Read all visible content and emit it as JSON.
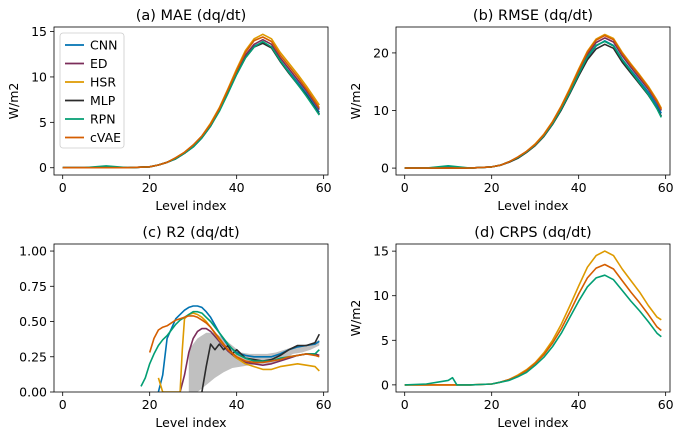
{
  "figure": {
    "legend_title": ""
  },
  "colors": {
    "CNN": "#0173b2",
    "ED": "#7b2d5a",
    "HSR": "#de9a00",
    "MLP": "#2b2b2b",
    "RPN": "#029e73",
    "cVAE": "#d55e00",
    "band": "#c0c0c0"
  },
  "chart_data": [
    {
      "type": "line",
      "title": "(a) MAE (dq/dt)",
      "xlabel": "Level index",
      "ylabel": "W/m2",
      "xlim": [
        -2,
        61
      ],
      "ylim": [
        -0.8,
        15.5
      ],
      "xticks": [
        0,
        20,
        40,
        60
      ],
      "yticks": [
        0,
        5,
        10,
        15
      ],
      "legend": "top-left",
      "grid": false,
      "x": [
        0,
        5,
        10,
        15,
        20,
        22,
        24,
        26,
        28,
        30,
        32,
        34,
        36,
        38,
        40,
        42,
        44,
        46,
        48,
        50,
        52,
        54,
        56,
        58,
        59
      ],
      "series": [
        {
          "name": "CNN",
          "values": [
            0,
            0,
            0.1,
            0,
            0.1,
            0.3,
            0.6,
            1.0,
            1.6,
            2.3,
            3.3,
            4.6,
            6.3,
            8.3,
            10.4,
            12.2,
            13.4,
            13.8,
            13.3,
            11.8,
            10.6,
            9.4,
            8.2,
            6.8,
            6.1
          ]
        },
        {
          "name": "ED",
          "values": [
            0,
            0,
            0,
            0,
            0.1,
            0.3,
            0.6,
            1.0,
            1.6,
            2.4,
            3.4,
            4.7,
            6.4,
            8.4,
            10.5,
            12.4,
            13.6,
            14.1,
            13.6,
            12.1,
            10.9,
            9.7,
            8.5,
            7.1,
            6.4
          ]
        },
        {
          "name": "HSR",
          "values": [
            0,
            0,
            0,
            0,
            0.1,
            0.3,
            0.6,
            1.1,
            1.7,
            2.5,
            3.5,
            4.9,
            6.6,
            8.7,
            10.9,
            12.9,
            14.2,
            14.7,
            14.2,
            12.7,
            11.5,
            10.3,
            9.0,
            7.6,
            6.9
          ]
        },
        {
          "name": "MLP",
          "values": [
            0,
            0,
            0,
            0,
            0.1,
            0.3,
            0.6,
            1.0,
            1.6,
            2.3,
            3.3,
            4.6,
            6.3,
            8.3,
            10.3,
            12.1,
            13.3,
            13.7,
            13.2,
            11.7,
            10.4,
            9.2,
            8.0,
            6.6,
            5.9
          ]
        },
        {
          "name": "RPN",
          "values": [
            0,
            0,
            0.2,
            0,
            0.1,
            0.3,
            0.6,
            1.0,
            1.6,
            2.3,
            3.3,
            4.6,
            6.2,
            8.2,
            10.3,
            12.1,
            13.3,
            13.9,
            13.3,
            11.8,
            10.5,
            9.2,
            7.9,
            6.5,
            5.8
          ]
        },
        {
          "name": "cVAE",
          "values": [
            0,
            0,
            0,
            0,
            0.1,
            0.3,
            0.6,
            1.1,
            1.7,
            2.5,
            3.5,
            4.8,
            6.5,
            8.6,
            10.7,
            12.7,
            14.0,
            14.4,
            13.9,
            12.4,
            11.2,
            10.0,
            8.7,
            7.3,
            6.6
          ]
        }
      ]
    },
    {
      "type": "line",
      "title": "(b) RMSE (dq/dt)",
      "xlabel": "Level index",
      "ylabel": "W/m2",
      "xlim": [
        -2,
        61
      ],
      "ylim": [
        -1.2,
        24.5
      ],
      "xticks": [
        0,
        20,
        40,
        60
      ],
      "yticks": [
        0,
        10,
        20
      ],
      "grid": false,
      "x": [
        0,
        5,
        10,
        15,
        20,
        22,
        24,
        26,
        28,
        30,
        32,
        34,
        36,
        38,
        40,
        42,
        44,
        46,
        48,
        50,
        52,
        54,
        56,
        58,
        59
      ],
      "series": [
        {
          "name": "CNN",
          "values": [
            0,
            0,
            0.2,
            0,
            0.2,
            0.5,
            1.1,
            1.8,
            2.8,
            4.0,
            5.6,
            7.7,
            10.2,
            13.1,
            16.2,
            19.2,
            21.2,
            22.1,
            21.3,
            18.9,
            17.0,
            15.1,
            13.2,
            10.9,
            9.5
          ]
        },
        {
          "name": "ED",
          "values": [
            0,
            0,
            0,
            0,
            0.2,
            0.5,
            1.1,
            1.8,
            2.8,
            4.0,
            5.7,
            7.8,
            10.4,
            13.4,
            16.6,
            19.7,
            21.8,
            22.6,
            21.9,
            19.5,
            17.5,
            15.6,
            13.7,
            11.4,
            10.0
          ]
        },
        {
          "name": "HSR",
          "values": [
            0,
            0,
            0,
            0,
            0.2,
            0.5,
            1.1,
            1.9,
            2.9,
            4.2,
            5.9,
            8.1,
            10.8,
            13.9,
            17.2,
            20.3,
            22.4,
            23.2,
            22.5,
            20.1,
            18.1,
            16.2,
            14.2,
            11.8,
            10.4
          ]
        },
        {
          "name": "MLP",
          "values": [
            0,
            0,
            0,
            0,
            0.2,
            0.5,
            1.0,
            1.7,
            2.7,
            3.9,
            5.5,
            7.6,
            10.1,
            13.0,
            16.0,
            18.8,
            20.7,
            21.5,
            20.8,
            18.4,
            16.5,
            14.6,
            12.7,
            10.4,
            9.0
          ]
        },
        {
          "name": "RPN",
          "values": [
            0,
            0,
            0.4,
            0,
            0.2,
            0.5,
            1.1,
            1.8,
            2.8,
            4.0,
            5.6,
            7.7,
            10.3,
            13.2,
            16.3,
            19.3,
            21.3,
            22.0,
            21.2,
            18.8,
            16.8,
            14.8,
            12.8,
            10.3,
            8.8
          ]
        },
        {
          "name": "cVAE",
          "values": [
            0,
            0,
            0,
            0,
            0.2,
            0.5,
            1.1,
            1.9,
            2.9,
            4.1,
            5.8,
            8.0,
            10.7,
            13.7,
            17.0,
            20.1,
            22.2,
            23.0,
            22.3,
            19.9,
            17.9,
            16.0,
            14.0,
            11.6,
            10.2
          ]
        }
      ]
    },
    {
      "type": "line",
      "title": "(c) R2 (dq/dt)",
      "xlabel": "Level index",
      "ylabel": "",
      "xlim": [
        -2,
        61
      ],
      "ylim": [
        0,
        1.05
      ],
      "xticks": [
        0,
        20,
        40,
        60
      ],
      "yticks": [
        0.0,
        0.25,
        0.5,
        0.75,
        1.0
      ],
      "ytick_labels": [
        "0.00",
        "0.25",
        "0.50",
        "0.75",
        "1.00"
      ],
      "grid": false,
      "band": {
        "x": [
          29,
          31,
          33,
          35,
          37,
          39,
          41,
          43,
          45,
          47,
          49,
          51,
          53,
          55,
          57,
          59
        ],
        "lower": [
          0.0,
          0.0,
          0.05,
          0.1,
          0.14,
          0.17,
          0.18,
          0.19,
          0.2,
          0.2,
          0.21,
          0.24,
          0.27,
          0.28,
          0.3,
          0.33
        ],
        "upper": [
          0.3,
          0.38,
          0.42,
          0.42,
          0.38,
          0.33,
          0.28,
          0.27,
          0.27,
          0.27,
          0.28,
          0.3,
          0.32,
          0.33,
          0.34,
          0.37
        ]
      },
      "series": [
        {
          "name": "CNN",
          "x": [
            22,
            23,
            24,
            26,
            28,
            29,
            30,
            31,
            32,
            33,
            34,
            36,
            38,
            40,
            42,
            44,
            46,
            48,
            50,
            52,
            54,
            56,
            58,
            59
          ],
          "values": [
            0.0,
            0.12,
            0.38,
            0.52,
            0.58,
            0.6,
            0.61,
            0.61,
            0.6,
            0.57,
            0.53,
            0.42,
            0.33,
            0.28,
            0.26,
            0.25,
            0.25,
            0.25,
            0.27,
            0.3,
            0.32,
            0.33,
            0.34,
            0.36
          ]
        },
        {
          "name": "ED",
          "x": [
            27,
            28,
            29,
            30,
            31,
            32,
            33,
            34,
            36,
            38,
            40,
            42,
            44,
            46,
            48,
            50,
            52,
            54,
            56,
            58,
            59
          ],
          "values": [
            0.0,
            0.12,
            0.28,
            0.38,
            0.43,
            0.45,
            0.45,
            0.43,
            0.36,
            0.29,
            0.24,
            0.21,
            0.2,
            0.19,
            0.2,
            0.22,
            0.24,
            0.26,
            0.27,
            0.27,
            0.26
          ]
        },
        {
          "name": "HSR",
          "x": [
            22,
            23,
            24,
            25,
            26,
            27,
            27.5,
            28,
            29,
            30,
            31,
            32,
            33,
            34,
            36,
            38,
            40,
            42,
            44,
            46,
            48,
            50,
            52,
            54,
            56,
            58,
            59
          ],
          "values": [
            0.1,
            0.0,
            0.0,
            0.0,
            0.0,
            0.0,
            0.3,
            0.52,
            0.55,
            0.56,
            0.55,
            0.53,
            0.5,
            0.46,
            0.37,
            0.3,
            0.24,
            0.2,
            0.18,
            0.16,
            0.16,
            0.18,
            0.19,
            0.2,
            0.19,
            0.18,
            0.15
          ]
        },
        {
          "name": "MLP",
          "x": [
            32,
            33,
            34,
            35,
            36,
            37,
            38,
            39,
            40,
            42,
            44,
            46,
            48,
            50,
            52,
            54,
            56,
            58,
            59
          ],
          "values": [
            0.0,
            0.18,
            0.34,
            0.3,
            0.34,
            0.3,
            0.33,
            0.27,
            0.3,
            0.24,
            0.23,
            0.22,
            0.23,
            0.26,
            0.3,
            0.33,
            0.33,
            0.35,
            0.41
          ]
        },
        {
          "name": "RPN",
          "x": [
            18,
            19,
            20,
            21,
            22,
            23,
            24,
            25,
            26,
            27,
            28,
            29,
            30,
            31,
            32,
            33,
            34,
            36,
            38,
            40,
            42,
            44,
            46,
            48,
            50,
            52,
            54,
            56,
            58,
            59
          ],
          "values": [
            0.04,
            0.1,
            0.2,
            0.27,
            0.33,
            0.37,
            0.4,
            0.44,
            0.48,
            0.51,
            0.53,
            0.55,
            0.57,
            0.57,
            0.56,
            0.53,
            0.5,
            0.42,
            0.34,
            0.27,
            0.24,
            0.22,
            0.22,
            0.22,
            0.24,
            0.25,
            0.26,
            0.27,
            0.27,
            0.3
          ]
        },
        {
          "name": "cVAE",
          "x": [
            20,
            21,
            22,
            23,
            24,
            25,
            26,
            27,
            28,
            29,
            30,
            31,
            32,
            33,
            34,
            36,
            38,
            40,
            42,
            44,
            46,
            48,
            50,
            52,
            54,
            56,
            58,
            59
          ],
          "values": [
            0.28,
            0.38,
            0.44,
            0.46,
            0.47,
            0.49,
            0.51,
            0.52,
            0.53,
            0.54,
            0.54,
            0.53,
            0.51,
            0.49,
            0.46,
            0.38,
            0.3,
            0.25,
            0.22,
            0.21,
            0.21,
            0.22,
            0.23,
            0.25,
            0.26,
            0.27,
            0.26,
            0.25
          ]
        }
      ]
    },
    {
      "type": "line",
      "title": "(d) CRPS (dq/dt)",
      "xlabel": "Level index",
      "ylabel": "W/m2",
      "xlim": [
        -2,
        61
      ],
      "ylim": [
        -0.8,
        15.8
      ],
      "xticks": [
        0,
        20,
        40,
        60
      ],
      "yticks": [
        0,
        5,
        10,
        15
      ],
      "grid": false,
      "x": [
        0,
        5,
        10,
        11,
        12,
        15,
        20,
        22,
        24,
        26,
        28,
        30,
        32,
        34,
        36,
        38,
        40,
        42,
        44,
        46,
        48,
        50,
        52,
        54,
        56,
        58,
        59
      ],
      "series": [
        {
          "name": "HSR",
          "values": [
            0,
            0,
            0,
            0,
            0,
            0,
            0.1,
            0.3,
            0.6,
            1.1,
            1.7,
            2.5,
            3.6,
            5.0,
            6.8,
            8.9,
            11.1,
            13.2,
            14.5,
            15.0,
            14.5,
            13.0,
            11.7,
            10.4,
            8.9,
            7.6,
            7.3
          ]
        },
        {
          "name": "cVAE",
          "values": [
            0,
            0,
            0,
            0,
            0,
            0,
            0.1,
            0.3,
            0.6,
            1.0,
            1.6,
            2.4,
            3.4,
            4.7,
            6.3,
            8.2,
            10.2,
            12.0,
            13.1,
            13.5,
            13.0,
            11.7,
            10.4,
            9.2,
            7.9,
            6.5,
            6.1
          ]
        },
        {
          "name": "RPN",
          "values": [
            0,
            0.1,
            0.5,
            0.8,
            0.0,
            0,
            0.1,
            0.3,
            0.5,
            0.9,
            1.4,
            2.2,
            3.1,
            4.3,
            5.8,
            7.6,
            9.4,
            11.0,
            12.0,
            12.3,
            11.8,
            10.6,
            9.4,
            8.3,
            7.1,
            5.8,
            5.4
          ]
        }
      ]
    }
  ]
}
